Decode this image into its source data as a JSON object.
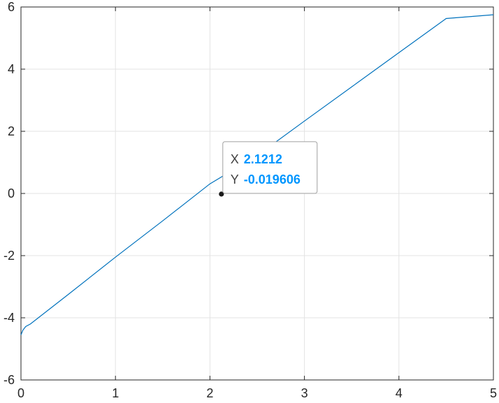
{
  "chart_data": {
    "type": "line",
    "title": "",
    "xlabel": "",
    "ylabel": "",
    "xlim": [
      0,
      5
    ],
    "ylim": [
      -6,
      6
    ],
    "x_ticks": [
      0,
      1,
      2,
      3,
      4,
      5
    ],
    "y_ticks": [
      -6,
      -4,
      -2,
      0,
      2,
      4,
      6
    ],
    "x_tick_labels": [
      "0",
      "1",
      "2",
      "3",
      "4",
      "5"
    ],
    "y_tick_labels": [
      "-6",
      "-4",
      "-2",
      "0",
      "2",
      "4",
      "6"
    ],
    "grid": true,
    "series": [
      {
        "color": "#0072bd",
        "x": [
          0,
          0.02,
          0.05,
          0.1,
          0.5,
          1,
          1.5,
          2,
          2.1212,
          2.5,
          3,
          3.5,
          4,
          4.5,
          5
        ],
        "y": [
          -4.55,
          -4.4,
          -4.28,
          -4.2,
          -3.25,
          -2.05,
          -0.88,
          0.31,
          -0.019606,
          1.22,
          2.33,
          3.43,
          4.53,
          5.63,
          5.75
        ]
      }
    ],
    "datatip": {
      "x_key": "X",
      "y_key": "Y",
      "x_value": "2.1212",
      "y_value": "-0.019606",
      "x": 2.1212,
      "y": -0.019606
    }
  }
}
